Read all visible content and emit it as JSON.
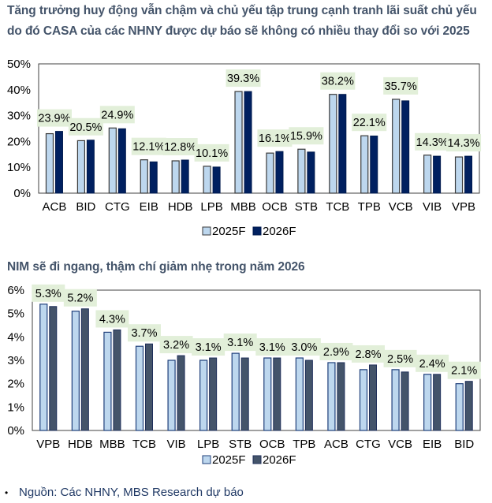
{
  "titles": {
    "chart1_line1": "Tăng trưởng huy động vẫn chậm và chủ yếu tập trung cạnh tranh lãi suất chủ yếu",
    "chart1_line2": "do đó CASA của các NHNY được dự báo sẽ không có nhiều thay đổi so với 2025",
    "chart2": "NIM sẽ đi ngang, thậm chí giảm nhẹ trong năm 2026"
  },
  "source": {
    "bullet": "•",
    "text": "Nguồn: Các NHNY, MBS Research dự báo"
  },
  "colors": {
    "light_bar": "#bdd7ee",
    "dark_bar_chart1": "#002060",
    "dark_bar_chart2": "#44546a",
    "label_box": "#e2efd9",
    "title": "#44546a"
  },
  "chart_data": [
    {
      "type": "bar",
      "title": "Tăng trưởng huy động vẫn chậm và chủ yếu tập trung cạnh tranh lãi suất chủ yếu do đó CASA của các NHNY được dự báo sẽ không có nhiều thay đổi so với 2025",
      "categories": [
        "ACB",
        "BID",
        "CTG",
        "EIB",
        "HDB",
        "LPB",
        "MBB",
        "OCB",
        "STB",
        "TCB",
        "TPB",
        "VCB",
        "VIB",
        "VPB"
      ],
      "series": [
        {
          "name": "2025F",
          "values": [
            23.0,
            20.3,
            25.2,
            12.9,
            12.5,
            10.4,
            39.3,
            15.5,
            17.0,
            38.2,
            22.2,
            36.3,
            14.7,
            14.0
          ]
        },
        {
          "name": "2026F",
          "values": [
            23.9,
            20.5,
            24.9,
            12.1,
            12.8,
            10.1,
            39.3,
            16.1,
            15.9,
            38.2,
            22.1,
            35.7,
            14.3,
            14.3
          ]
        }
      ],
      "data_labels": [
        "23.9%",
        "20.5%",
        "24.9%",
        "12.1%",
        "12.8%",
        "10.1%",
        "39.3%",
        "16.1%",
        "15.9%",
        "38.2%",
        "22.1%",
        "35.7%",
        "14.3%",
        "14.3%"
      ],
      "yticks": [
        "0%",
        "10%",
        "20%",
        "30%",
        "40%",
        "50%"
      ],
      "ylim": [
        0,
        50
      ],
      "xlabel": "",
      "ylabel": "",
      "grid": false,
      "legend": [
        "2025F",
        "2026F"
      ],
      "legend_position": "bottom"
    },
    {
      "type": "bar",
      "title": "NIM sẽ đi ngang, thậm chí giảm nhẹ trong năm 2026",
      "categories": [
        "VPB",
        "HDB",
        "MBB",
        "TCB",
        "VIB",
        "LPB",
        "STB",
        "OCB",
        "TPB",
        "ACB",
        "CTG",
        "VCB",
        "EIB",
        "BID"
      ],
      "series": [
        {
          "name": "2025F",
          "values": [
            5.4,
            5.1,
            4.2,
            3.6,
            3.0,
            3.0,
            3.3,
            3.1,
            3.1,
            2.9,
            2.6,
            2.6,
            2.4,
            2.0
          ]
        },
        {
          "name": "2026F",
          "values": [
            5.3,
            5.2,
            4.3,
            3.7,
            3.2,
            3.1,
            3.1,
            3.1,
            3.0,
            2.9,
            2.8,
            2.5,
            2.4,
            2.1
          ]
        }
      ],
      "data_labels": [
        "5.3%",
        "5.2%",
        "4.3%",
        "3.7%",
        "3.2%",
        "3.1%",
        "3.1%",
        "3.1%",
        "3.0%",
        "2.9%",
        "2.8%",
        "2.5%",
        "2.4%",
        "2.1%"
      ],
      "yticks": [
        "0%",
        "1%",
        "2%",
        "3%",
        "4%",
        "5%",
        "6%"
      ],
      "ylim": [
        0,
        6
      ],
      "xlabel": "",
      "ylabel": "",
      "grid": false,
      "legend": [
        "2025F",
        "2026F"
      ],
      "legend_position": "bottom"
    }
  ]
}
